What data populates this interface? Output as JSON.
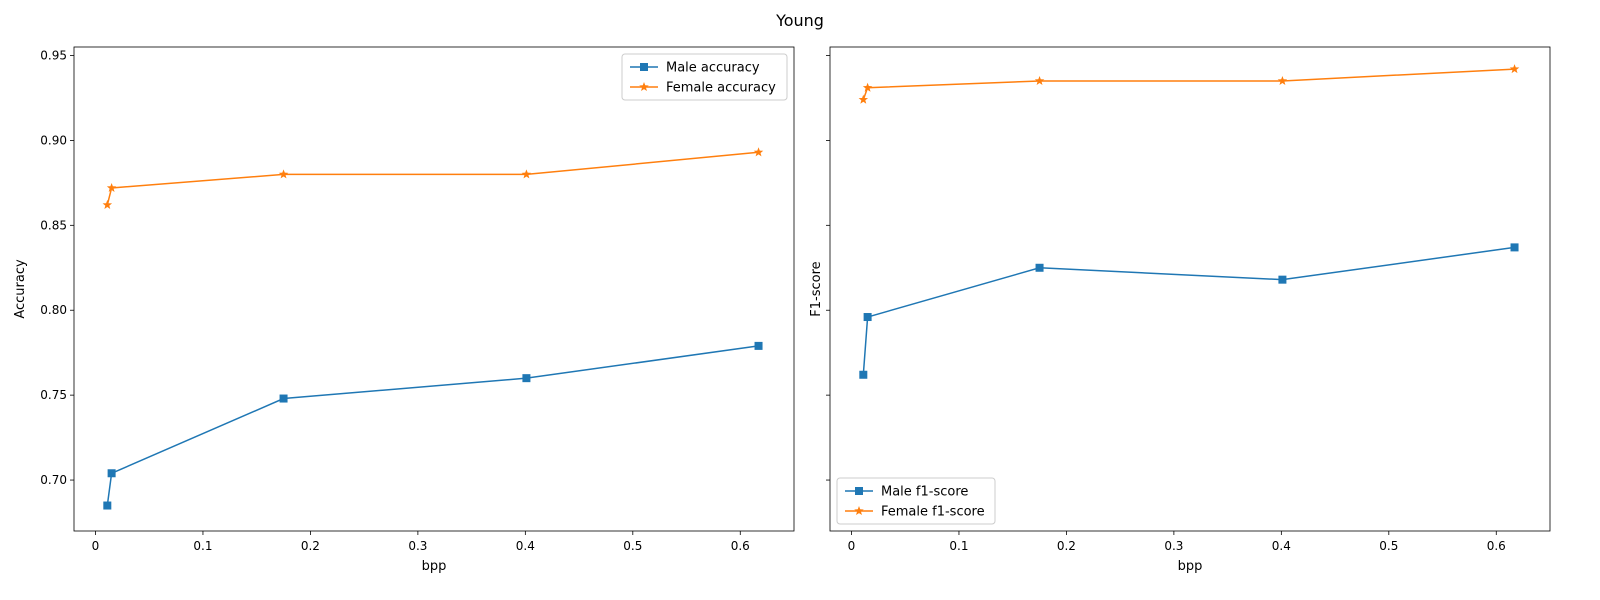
{
  "chart_data": {
    "type": "line",
    "title": "Young",
    "panels": [
      {
        "xlabel": "bpp",
        "ylabel": "Accuracy",
        "xlim": [
          -0.02,
          0.65
        ],
        "ylim": [
          0.67,
          0.955
        ],
        "xticks": [
          0.0,
          0.1,
          0.2,
          0.3,
          0.4,
          0.5,
          0.6
        ],
        "yticks": [
          0.7,
          0.75,
          0.8,
          0.85,
          0.9,
          0.95
        ],
        "ytick_labels": [
          "0.70",
          "0.75",
          "0.80",
          "0.85",
          "0.90",
          "0.95"
        ],
        "legend_position": "upper-right",
        "series": [
          {
            "name": "Male accuracy",
            "color": "#1f77b4",
            "marker": "square",
            "x": [
              0.011,
              0.015,
              0.175,
              0.401,
              0.617
            ],
            "y": [
              0.685,
              0.704,
              0.748,
              0.76,
              0.779
            ]
          },
          {
            "name": "Female accuracy",
            "color": "#ff7f0e",
            "marker": "star",
            "x": [
              0.011,
              0.015,
              0.175,
              0.401,
              0.617
            ],
            "y": [
              0.862,
              0.872,
              0.88,
              0.88,
              0.893
            ]
          }
        ]
      },
      {
        "xlabel": "bpp",
        "ylabel": "F1-score",
        "xlim": [
          -0.02,
          0.65
        ],
        "ylim": [
          0.67,
          0.955
        ],
        "xticks": [
          0.0,
          0.1,
          0.2,
          0.3,
          0.4,
          0.5,
          0.6
        ],
        "yticks": [
          0.7,
          0.75,
          0.8,
          0.85,
          0.9,
          0.95
        ],
        "ytick_labels": [
          "",
          "",
          "",
          "",
          "",
          ""
        ],
        "legend_position": "lower-left",
        "series": [
          {
            "name": "Male f1-score",
            "color": "#1f77b4",
            "marker": "square",
            "x": [
              0.011,
              0.015,
              0.175,
              0.401,
              0.617
            ],
            "y": [
              0.762,
              0.796,
              0.825,
              0.818,
              0.837
            ]
          },
          {
            "name": "Female f1-score",
            "color": "#ff7f0e",
            "marker": "star",
            "x": [
              0.011,
              0.015,
              0.175,
              0.401,
              0.617
            ],
            "y": [
              0.924,
              0.931,
              0.935,
              0.935,
              0.942
            ]
          }
        ]
      }
    ]
  }
}
